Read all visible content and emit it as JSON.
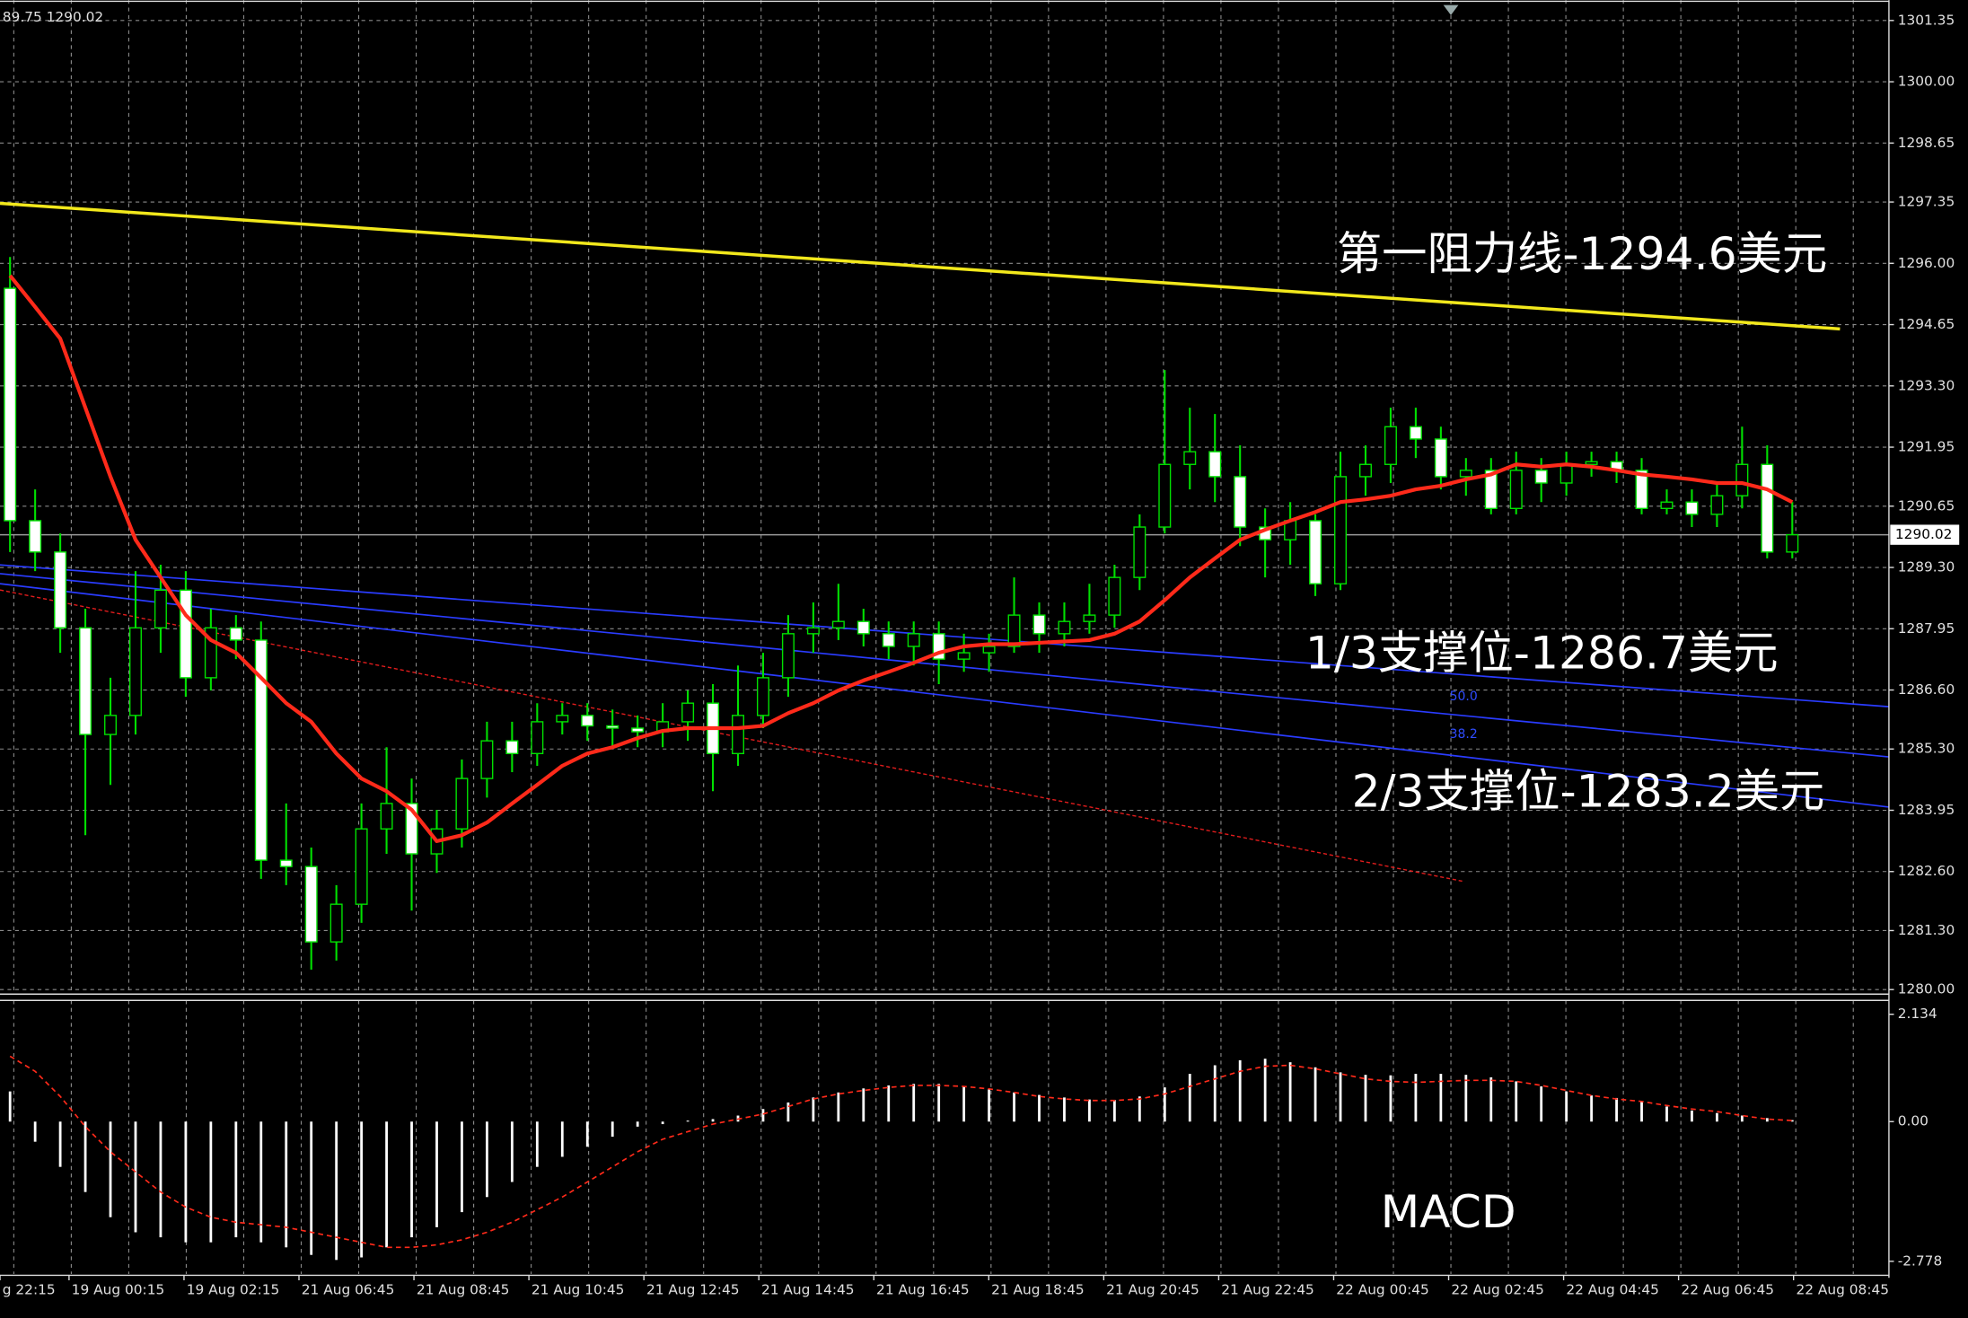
{
  "chart_data": [
    {
      "type": "candlestick",
      "header": "89.75 1290.02",
      "open": [
        1295.45,
        1290.33,
        1289.64,
        1287.97,
        1285.62,
        1286.04,
        1287.97,
        1288.8,
        1286.87,
        1287.97,
        1287.7,
        1282.85,
        1282.71,
        1281.05,
        1281.88,
        1283.54,
        1284.1,
        1282.99,
        1283.54,
        1284.65,
        1285.48,
        1285.2,
        1285.9,
        1286.04,
        1285.81,
        1285.76,
        1285.68,
        1285.9,
        1286.31,
        1285.2,
        1286.04,
        1286.87,
        1287.84,
        1287.97,
        1288.11,
        1287.84,
        1287.56,
        1287.84,
        1287.28,
        1287.42,
        1287.56,
        1288.25,
        1287.84,
        1288.11,
        1288.25,
        1289.08,
        1290.19,
        1291.57,
        1291.85,
        1291.3,
        1290.19,
        1289.91,
        1290.33,
        1288.94,
        1291.3,
        1291.57,
        1292.4,
        1292.13,
        1291.3,
        1291.44,
        1290.6,
        1291.44,
        1291.16,
        1291.57,
        1291.63,
        1291.44,
        1290.6,
        1290.74,
        1290.47,
        1290.88,
        1291.57,
        1289.64
      ],
      "high": [
        1296.14,
        1291.02,
        1290.05,
        1288.39,
        1286.87,
        1289.22,
        1289.36,
        1289.22,
        1288.39,
        1288.25,
        1288.11,
        1284.1,
        1283.13,
        1282.3,
        1284.1,
        1285.34,
        1284.65,
        1283.96,
        1285.07,
        1285.9,
        1285.9,
        1286.31,
        1286.31,
        1286.31,
        1286.17,
        1286.04,
        1286.31,
        1286.59,
        1286.73,
        1287.14,
        1287.42,
        1288.25,
        1288.53,
        1288.94,
        1288.39,
        1288.11,
        1288.11,
        1288.11,
        1287.84,
        1287.84,
        1289.08,
        1288.53,
        1288.53,
        1288.94,
        1289.36,
        1290.47,
        1293.65,
        1292.82,
        1292.68,
        1291.99,
        1290.6,
        1290.74,
        1290.47,
        1291.85,
        1291.99,
        1292.82,
        1292.82,
        1292.4,
        1291.71,
        1291.71,
        1291.85,
        1291.71,
        1291.85,
        1291.85,
        1291.85,
        1291.71,
        1291.02,
        1291.02,
        1291.16,
        1292.4,
        1291.99,
        1290.74
      ],
      "low": [
        1289.64,
        1289.22,
        1287.42,
        1283.4,
        1284.51,
        1285.62,
        1287.42,
        1286.45,
        1286.59,
        1287.28,
        1282.44,
        1282.3,
        1280.44,
        1280.64,
        1281.47,
        1282.99,
        1281.74,
        1282.57,
        1283.13,
        1284.23,
        1284.79,
        1284.93,
        1285.62,
        1285.48,
        1285.34,
        1285.34,
        1285.34,
        1285.48,
        1284.37,
        1284.93,
        1285.76,
        1286.45,
        1287.42,
        1287.7,
        1287.56,
        1287.28,
        1287.14,
        1286.73,
        1287.0,
        1287.0,
        1287.42,
        1287.42,
        1287.56,
        1287.84,
        1287.97,
        1288.8,
        1290.05,
        1291.02,
        1290.74,
        1289.77,
        1289.08,
        1289.36,
        1288.67,
        1288.8,
        1290.88,
        1291.16,
        1291.71,
        1291.02,
        1290.88,
        1290.47,
        1290.47,
        1290.74,
        1290.88,
        1291.3,
        1291.16,
        1290.47,
        1290.47,
        1290.19,
        1290.19,
        1290.6,
        1289.5,
        1289.5
      ],
      "close": [
        1290.33,
        1289.64,
        1287.97,
        1285.62,
        1286.04,
        1287.97,
        1288.8,
        1286.87,
        1287.97,
        1287.7,
        1282.85,
        1282.71,
        1281.05,
        1281.88,
        1283.54,
        1284.1,
        1282.99,
        1283.54,
        1284.65,
        1285.48,
        1285.2,
        1285.9,
        1286.04,
        1285.81,
        1285.76,
        1285.68,
        1285.9,
        1286.31,
        1285.2,
        1286.04,
        1286.87,
        1287.84,
        1287.97,
        1288.11,
        1287.84,
        1287.56,
        1287.84,
        1287.28,
        1287.42,
        1287.56,
        1288.25,
        1287.84,
        1288.11,
        1288.25,
        1289.08,
        1290.19,
        1291.57,
        1291.85,
        1291.3,
        1290.19,
        1289.91,
        1290.33,
        1288.94,
        1291.3,
        1291.57,
        1292.4,
        1292.13,
        1291.3,
        1291.44,
        1290.6,
        1291.44,
        1291.16,
        1291.57,
        1291.63,
        1291.44,
        1290.6,
        1290.74,
        1290.47,
        1290.88,
        1291.57,
        1289.64,
        1290.02
      ],
      "up_color": "#000000",
      "down_color": "#ffffff",
      "wick_color": "#00e000",
      "ma": {
        "color": "#ff2a1a",
        "values": [
          1295.73,
          1295.04,
          1294.34,
          1292.82,
          1291.3,
          1289.91,
          1289.08,
          1288.25,
          1287.7,
          1287.42,
          1286.87,
          1286.31,
          1285.9,
          1285.2,
          1284.65,
          1284.37,
          1283.96,
          1283.27,
          1283.4,
          1283.68,
          1284.1,
          1284.51,
          1284.93,
          1285.2,
          1285.34,
          1285.54,
          1285.7,
          1285.76,
          1285.76,
          1285.76,
          1285.81,
          1286.09,
          1286.31,
          1286.59,
          1286.81,
          1287.0,
          1287.2,
          1287.42,
          1287.56,
          1287.61,
          1287.61,
          1287.64,
          1287.67,
          1287.7,
          1287.84,
          1288.11,
          1288.58,
          1289.08,
          1289.5,
          1289.91,
          1290.13,
          1290.33,
          1290.52,
          1290.74,
          1290.8,
          1290.88,
          1291.02,
          1291.1,
          1291.24,
          1291.35,
          1291.57,
          1291.52,
          1291.57,
          1291.52,
          1291.44,
          1291.35,
          1291.3,
          1291.24,
          1291.16,
          1291.16,
          1291.02,
          1290.74
        ]
      },
      "last_price": 1290.02,
      "ylim": [
        1279.9,
        1301.8
      ],
      "yticks": [
        1301.35,
        {
          "value": 1300,
          "label": "1300.00"
        },
        1298.65,
        1297.35,
        {
          "value": 1296,
          "label": "1296.00"
        },
        1294.65,
        {
          "value": 1293.3,
          "label": "1293.30"
        },
        1291.95,
        1290.65,
        {
          "value": 1289.3,
          "label": "1289.30"
        },
        1287.95,
        {
          "value": 1286.6,
          "label": "1286.60"
        },
        {
          "value": 1285.3,
          "label": "1285.30"
        },
        1283.95,
        {
          "value": 1282.6,
          "label": "1282.60"
        },
        {
          "value": 1281.3,
          "label": "1281.30"
        },
        {
          "value": 1280,
          "label": "1280.00"
        }
      ],
      "grid": true,
      "annotations": [
        {
          "text": "第一阻力线-1294.6美元",
          "color": "#ffffff"
        },
        {
          "text": "1/3支撑位-1286.7美元",
          "color": "#ffffff"
        },
        {
          "text": "2/3支撑位-1283.2美元",
          "color": "#ffffff"
        },
        {
          "text": "50.0",
          "color": "#2f4cff"
        },
        {
          "text": "38.2",
          "color": "#2f4cff"
        }
      ],
      "time_labels": [
        "g 22:15",
        "19 Aug 00:15",
        "19 Aug 02:15",
        "21 Aug 06:45",
        "21 Aug 08:45",
        "21 Aug 10:45",
        "21 Aug 12:45",
        "21 Aug 14:45",
        "21 Aug 16:45",
        "21 Aug 18:45",
        "21 Aug 20:45",
        "21 Aug 22:45",
        "22 Aug 00:45",
        "22 Aug 02:45",
        "22 Aug 04:45",
        "22 Aug 06:45",
        "22 Aug 08:45"
      ]
    },
    {
      "type": "macd",
      "title": "MACD",
      "values": [
        0.6,
        -0.4,
        -0.9,
        -1.4,
        -1.9,
        -2.2,
        -2.3,
        -2.4,
        -2.4,
        -2.3,
        -2.4,
        -2.5,
        -2.65,
        -2.75,
        -2.7,
        -2.5,
        -2.3,
        -2.1,
        -1.8,
        -1.5,
        -1.2,
        -0.9,
        -0.7,
        -0.5,
        -0.3,
        -0.1,
        -0.05,
        0.02,
        0.05,
        0.12,
        0.25,
        0.38,
        0.48,
        0.58,
        0.66,
        0.72,
        0.75,
        0.75,
        0.7,
        0.64,
        0.58,
        0.53,
        0.48,
        0.44,
        0.43,
        0.5,
        0.68,
        0.95,
        1.12,
        1.22,
        1.25,
        1.18,
        1.08,
        0.98,
        0.93,
        0.92,
        0.95,
        0.95,
        0.93,
        0.88,
        0.8,
        0.7,
        0.6,
        0.52,
        0.47,
        0.4,
        0.3,
        0.22,
        0.17,
        0.12,
        0.07,
        0.03
      ],
      "color": "#ffffff",
      "signal": {
        "color": "#ff2a1a",
        "values": [
          1.3,
          1.0,
          0.5,
          -0.1,
          -0.6,
          -1.0,
          -1.4,
          -1.7,
          -1.9,
          -2.0,
          -2.05,
          -2.1,
          -2.2,
          -2.3,
          -2.4,
          -2.5,
          -2.5,
          -2.45,
          -2.35,
          -2.2,
          -2.0,
          -1.75,
          -1.5,
          -1.2,
          -0.9,
          -0.6,
          -0.35,
          -0.2,
          -0.05,
          0.05,
          0.15,
          0.3,
          0.45,
          0.55,
          0.62,
          0.68,
          0.72,
          0.72,
          0.7,
          0.65,
          0.58,
          0.5,
          0.45,
          0.42,
          0.42,
          0.45,
          0.55,
          0.7,
          0.85,
          1.0,
          1.1,
          1.12,
          1.05,
          0.95,
          0.85,
          0.8,
          0.78,
          0.8,
          0.82,
          0.82,
          0.8,
          0.72,
          0.62,
          0.52,
          0.45,
          0.4,
          0.32,
          0.25,
          0.2,
          0.12,
          0.05,
          0.02
        ]
      },
      "ylim": [
        -3.03,
        2.41
      ],
      "yticks": [
        2.134,
        {
          "value": 0,
          "label": "0.00"
        },
        -2.778
      ]
    }
  ]
}
